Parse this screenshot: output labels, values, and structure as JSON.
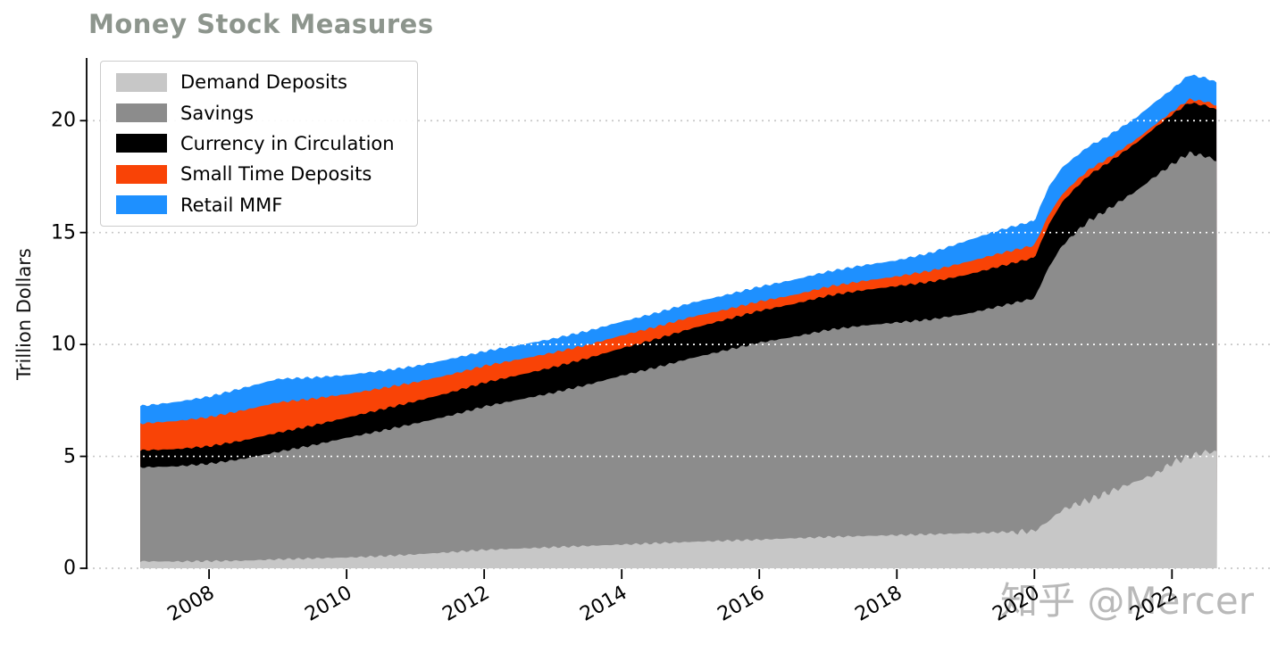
{
  "chart_data": {
    "type": "area",
    "stacked": true,
    "title": "Money Stock Measures",
    "xlabel": "",
    "ylabel": "Trillion Dollars",
    "units": "Trillion Dollars",
    "grid": "horizontal dotted",
    "legend_position": "upper left",
    "title_color": "#8d958d",
    "background_color": "#ffffff",
    "xlim": [
      2006.22,
      2023.45
    ],
    "ylim": [
      0,
      22.8
    ],
    "xticks": [
      2008,
      2010,
      2012,
      2014,
      2016,
      2018,
      2020,
      2022
    ],
    "yticks": [
      0,
      5,
      10,
      15,
      20
    ],
    "x": [
      2007.0,
      2007.5,
      2008.0,
      2008.5,
      2009.0,
      2009.5,
      2010.0,
      2010.5,
      2011.0,
      2011.5,
      2012.0,
      2012.5,
      2013.0,
      2013.5,
      2014.0,
      2014.5,
      2015.0,
      2015.5,
      2016.0,
      2016.5,
      2017.0,
      2017.5,
      2018.0,
      2018.5,
      2019.0,
      2019.5,
      2020.0,
      2020.2,
      2020.4,
      2020.6,
      2020.8,
      2021.0,
      2021.25,
      2021.5,
      2021.75,
      2022.0,
      2022.25,
      2022.5,
      2022.65
    ],
    "series": [
      {
        "name": "Demand Deposits",
        "color": "#c7c7c7",
        "values": [
          0.31,
          0.3,
          0.32,
          0.34,
          0.4,
          0.44,
          0.48,
          0.54,
          0.62,
          0.72,
          0.82,
          0.88,
          0.94,
          1.0,
          1.06,
          1.12,
          1.18,
          1.23,
          1.28,
          1.34,
          1.4,
          1.44,
          1.48,
          1.52,
          1.56,
          1.61,
          1.66,
          2.1,
          2.6,
          2.85,
          3.05,
          3.3,
          3.6,
          3.9,
          4.2,
          4.7,
          5.0,
          5.2,
          5.2
        ]
      },
      {
        "name": "Savings",
        "color": "#8c8c8c",
        "values": [
          4.2,
          4.25,
          4.35,
          4.55,
          4.8,
          5.05,
          5.35,
          5.6,
          5.85,
          6.1,
          6.4,
          6.65,
          6.9,
          7.2,
          7.55,
          7.85,
          8.2,
          8.5,
          8.8,
          9.0,
          9.25,
          9.4,
          9.5,
          9.6,
          9.8,
          10.1,
          10.4,
          11.3,
          11.8,
          12.15,
          12.5,
          12.6,
          12.8,
          13.0,
          13.3,
          13.35,
          13.55,
          13.2,
          13.0
        ]
      },
      {
        "name": "Currency in Circulation",
        "color": "#000000",
        "values": [
          0.76,
          0.77,
          0.78,
          0.82,
          0.86,
          0.88,
          0.9,
          0.95,
          0.99,
          1.03,
          1.07,
          1.1,
          1.14,
          1.18,
          1.22,
          1.27,
          1.32,
          1.37,
          1.42,
          1.47,
          1.53,
          1.58,
          1.63,
          1.68,
          1.74,
          1.78,
          1.82,
          1.9,
          1.95,
          2.0,
          2.03,
          2.07,
          2.1,
          2.15,
          2.18,
          2.22,
          2.25,
          2.27,
          2.28
        ]
      },
      {
        "name": "Small Time Deposits",
        "color": "#f94306",
        "values": [
          1.2,
          1.25,
          1.3,
          1.35,
          1.35,
          1.2,
          1.05,
          0.95,
          0.85,
          0.8,
          0.75,
          0.7,
          0.65,
          0.6,
          0.57,
          0.55,
          0.52,
          0.45,
          0.42,
          0.4,
          0.4,
          0.41,
          0.43,
          0.5,
          0.57,
          0.58,
          0.55,
          0.45,
          0.35,
          0.3,
          0.25,
          0.22,
          0.19,
          0.16,
          0.14,
          0.13,
          0.15,
          0.18,
          0.2
        ]
      },
      {
        "name": "Retail MMF",
        "color": "#1e90ff",
        "values": [
          0.78,
          0.85,
          0.92,
          1.0,
          1.05,
          0.95,
          0.85,
          0.78,
          0.72,
          0.7,
          0.65,
          0.64,
          0.63,
          0.62,
          0.62,
          0.62,
          0.63,
          0.65,
          0.66,
          0.68,
          0.68,
          0.7,
          0.72,
          0.8,
          0.95,
          1.05,
          1.1,
          1.25,
          1.2,
          1.1,
          1.05,
          1.0,
          0.98,
          0.98,
          1.0,
          1.0,
          1.1,
          1.05,
          1.02
        ]
      }
    ],
    "gridline_color_margin": "#c8c8c8",
    "gridline_color_over_areas": "#ffffff"
  },
  "watermark": {
    "text": "知乎 @Mercer",
    "color": "#b9b9b9"
  }
}
